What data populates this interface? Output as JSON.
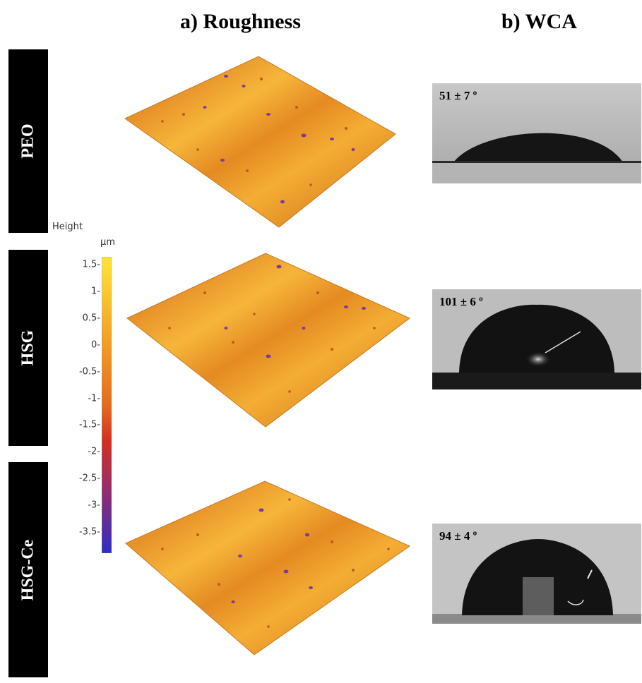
{
  "titles": {
    "roughness": "a) Roughness",
    "wca": "b) WCA"
  },
  "samples": [
    {
      "name": "PEO",
      "wca": "51 ± 7 º",
      "contact_angle_deg": 51
    },
    {
      "name": "HSG",
      "wca": "101 ± 6 º",
      "contact_angle_deg": 101
    },
    {
      "name": "HSG-Ce",
      "wca": "94 ± 4 º",
      "contact_angle_deg": 94
    }
  ],
  "colorbar": {
    "title": "Height",
    "unit": "µm",
    "ticks": [
      "1.5",
      "1",
      "0.5",
      "0",
      "-0.5",
      "-1",
      "-1.5",
      "-2",
      "-2.5",
      "-3",
      "-3.5"
    ],
    "range": [
      -3.9,
      1.65
    ],
    "colors": {
      "top": "#ffe533",
      "mid": "#f08a1a",
      "red": "#d6301e",
      "low": "#8a2f7a",
      "bottom": "#2e2ec8"
    }
  }
}
